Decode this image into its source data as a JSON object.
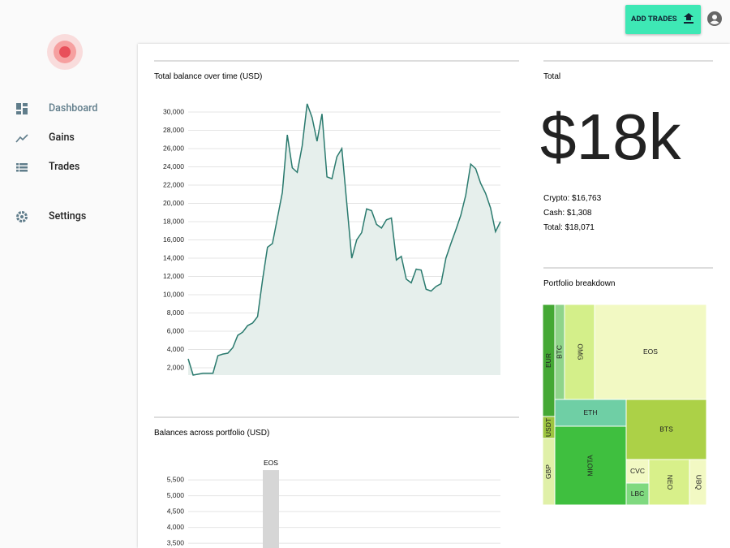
{
  "sidebar": {
    "nav": [
      "Dashboard",
      "Gains",
      "Trades",
      "Settings"
    ]
  },
  "topbar": {
    "button": "ADD TRADES"
  },
  "chart_data": [
    {
      "type": "line",
      "title": "Total balance over time (USD)",
      "color": "#2a7a6e",
      "fill": "#e6efec",
      "grid": true,
      "values": [
        2980,
        1200,
        1300,
        1400,
        1400,
        1400,
        3330,
        3500,
        3600,
        4200,
        5550,
        5900,
        6620,
        6900,
        7600,
        11600,
        15200,
        15600,
        18400,
        21200,
        27500,
        23900,
        23400,
        26300,
        30900,
        29400,
        26800,
        29800,
        22900,
        22700,
        25100,
        26000,
        20000,
        14000,
        16000,
        16800,
        19400,
        19200,
        17700,
        17300,
        18200,
        18400,
        13800,
        14200,
        11700,
        11300,
        12800,
        12700,
        10600,
        10400,
        10900,
        11200,
        14000,
        15600,
        17100,
        18700,
        20900,
        24300,
        23800,
        22200,
        21100,
        19500,
        16900,
        18000
      ],
      "ylim": [
        1200,
        31200
      ],
      "yticks": [
        {
          "value": 2000,
          "label": "2,000"
        },
        {
          "value": 4000,
          "label": "4,000"
        },
        {
          "value": 6000,
          "label": "6,000"
        },
        {
          "value": 8000,
          "label": "8,000"
        },
        {
          "value": 10000,
          "label": "10,000"
        },
        {
          "value": 12000,
          "label": "12,000"
        },
        {
          "value": 14000,
          "label": "14,000"
        },
        {
          "value": 16000,
          "label": "16,000"
        },
        {
          "value": 18000,
          "label": "18,000"
        },
        {
          "value": 20000,
          "label": "20,000"
        },
        {
          "value": 22000,
          "label": "22,000"
        },
        {
          "value": 24000,
          "label": "24,000"
        },
        {
          "value": 26000,
          "label": "26,000"
        },
        {
          "value": 28000,
          "label": "28,000"
        },
        {
          "value": 30000,
          "label": "30,000"
        }
      ]
    },
    {
      "type": "bar",
      "title": "Balances across portfolio (USD)",
      "color": "#d6d6d6",
      "grid": true,
      "categories": [
        "EOS"
      ],
      "values": [
        5808
      ],
      "ylim": [
        3350,
        5950
      ],
      "yticks": [
        {
          "value": 3500,
          "label": "3,500"
        },
        {
          "value": 4000,
          "label": "4,000"
        },
        {
          "value": 4500,
          "label": "4,500"
        },
        {
          "value": 5000,
          "label": "5,000"
        },
        {
          "value": 5500,
          "label": "5,500"
        }
      ]
    }
  ],
  "total": {
    "title": "Total",
    "amount": "$18k",
    "lines": [
      "Crypto: $16,763",
      "Cash: $1,308",
      "Total: $18,071"
    ]
  },
  "portfolio": {
    "title": "Portfolio breakdown",
    "cells": [
      "EUR",
      "BTC",
      "OMG",
      "EOS",
      "ETH",
      "BTS",
      "USDT",
      "GBP",
      "MIOTA",
      "CVC",
      "LBC",
      "NEO",
      "UBQ"
    ]
  }
}
